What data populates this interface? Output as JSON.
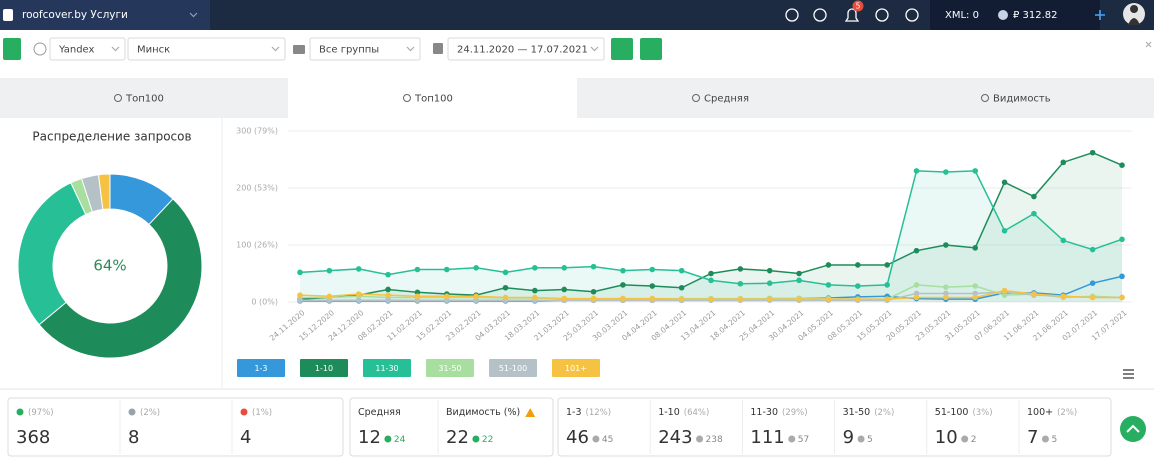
{
  "header": {
    "site": "roofcover.by Услуги",
    "notifications": 5,
    "xml": "XML: 0",
    "balance": "₽ 312.82"
  },
  "toolbar": {
    "engine": "Yandex",
    "region": "Минск",
    "groups": "Все группы",
    "dates": "24.11.2020 — 17.07.2021"
  },
  "tabs": [
    "Топ100",
    "Топ100",
    "Средняя",
    "Видимость"
  ],
  "chart_data": [
    {
      "type": "donut",
      "title": "Распределение запросов",
      "center_label": "64%",
      "values": [
        12,
        52,
        29,
        2,
        3,
        2
      ],
      "colors": [
        "#3498db",
        "#1e8c5a",
        "#26bf96",
        "#a8dfa0",
        "#b4c2c8",
        "#f6c244"
      ]
    },
    {
      "type": "line",
      "categories": [
        "24.11.2020",
        "15.12.2020",
        "24.12.2020",
        "08.02.2021",
        "11.02.2021",
        "15.02.2021",
        "23.02.2021",
        "04.03.2021",
        "18.03.2021",
        "21.03.2021",
        "25.03.2021",
        "30.03.2021",
        "04.04.2021",
        "08.04.2021",
        "13.04.2021",
        "18.04.2021",
        "25.04.2021",
        "30.04.2021",
        "04.05.2021",
        "08.05.2021",
        "15.05.2021",
        "20.05.2021",
        "23.05.2021",
        "31.05.2021",
        "07.06.2021",
        "11.06.2021",
        "21.06.2021",
        "02.07.2021",
        "17.07.2021"
      ],
      "ylim": [
        0,
        300
      ],
      "yticks": [
        {
          "value": 0,
          "label": "0 (0%)"
        },
        {
          "value": 100,
          "label": "100 (26%)"
        },
        {
          "value": 200,
          "label": "200 (53%)"
        },
        {
          "value": 300,
          "label": "300 (79%)"
        }
      ],
      "grid": true,
      "area_series": [
        "1-10",
        "11-30"
      ],
      "series": [
        {
          "name": "1-3",
          "color": "#3498db",
          "values": [
            2,
            2,
            2,
            2,
            2,
            2,
            2,
            2,
            2,
            3,
            3,
            3,
            3,
            3,
            4,
            5,
            6,
            6,
            7,
            9,
            10,
            6,
            5,
            5,
            16,
            16,
            12,
            33,
            45
          ]
        },
        {
          "name": "1-10",
          "color": "#1e8c5a",
          "values": [
            5,
            8,
            12,
            22,
            17,
            14,
            12,
            25,
            20,
            22,
            18,
            30,
            28,
            25,
            50,
            58,
            55,
            50,
            65,
            65,
            65,
            90,
            100,
            95,
            210,
            185,
            245,
            262,
            240
          ]
        },
        {
          "name": "11-30",
          "color": "#26bf96",
          "values": [
            52,
            55,
            58,
            48,
            57,
            57,
            60,
            52,
            60,
            60,
            62,
            55,
            57,
            55,
            38,
            32,
            33,
            38,
            30,
            28,
            30,
            230,
            228,
            230,
            125,
            155,
            108,
            92,
            110
          ]
        },
        {
          "name": "31-50",
          "color": "#a8dfa0",
          "values": [
            8,
            8,
            10,
            8,
            8,
            8,
            8,
            7,
            7,
            6,
            6,
            6,
            6,
            6,
            6,
            6,
            6,
            6,
            6,
            5,
            5,
            30,
            26,
            28,
            12,
            14,
            8,
            10,
            8
          ]
        },
        {
          "name": "51-100",
          "color": "#b4c2c8",
          "values": [
            3,
            3,
            3,
            3,
            3,
            3,
            3,
            3,
            3,
            3,
            3,
            3,
            3,
            3,
            3,
            3,
            3,
            3,
            3,
            3,
            3,
            15,
            15,
            15,
            18,
            12,
            10,
            8,
            8
          ]
        },
        {
          "name": "101+",
          "color": "#f6c244",
          "values": [
            12,
            10,
            14,
            12,
            10,
            10,
            10,
            8,
            8,
            6,
            6,
            6,
            6,
            5,
            5,
            5,
            5,
            5,
            5,
            5,
            5,
            8,
            8,
            8,
            20,
            14,
            10,
            8,
            8
          ]
        }
      ]
    }
  ],
  "stats": {
    "totals": [
      {
        "pct": "(97%)",
        "value": 368,
        "color": "#27ae60"
      },
      {
        "pct": "(2%)",
        "value": 8,
        "color": "#9aa3ab"
      },
      {
        "pct": "(1%)",
        "value": 4,
        "color": "#e74c3c"
      }
    ],
    "averages": [
      {
        "label": "Средняя",
        "value": 12,
        "delta": 24
      },
      {
        "label": "Видимость (%)",
        "value": 22,
        "delta": 22
      }
    ],
    "ranges": [
      {
        "label": "1-3",
        "pct": "(12%)",
        "value": 46,
        "delta": 45
      },
      {
        "label": "1-10",
        "pct": "(64%)",
        "value": 243,
        "delta": 238
      },
      {
        "label": "11-30",
        "pct": "(29%)",
        "value": 111,
        "delta": 57
      },
      {
        "label": "31-50",
        "pct": "(2%)",
        "value": 9,
        "delta": 5
      },
      {
        "label": "51-100",
        "pct": "(3%)",
        "value": 10,
        "delta": 2
      },
      {
        "label": "100+",
        "pct": "(2%)",
        "value": 7,
        "delta": 5
      }
    ]
  }
}
